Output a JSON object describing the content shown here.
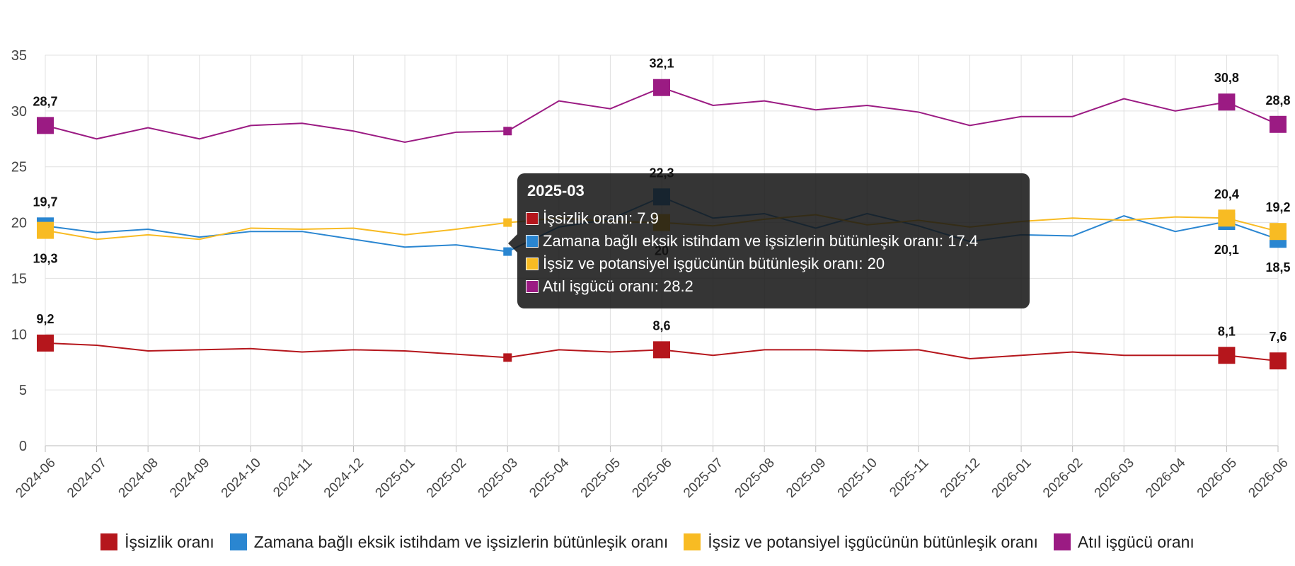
{
  "chart_data": {
    "type": "line",
    "x": [
      "2024-06",
      "2024-07",
      "2024-08",
      "2024-09",
      "2024-10",
      "2024-11",
      "2024-12",
      "2025-01",
      "2025-02",
      "2025-03",
      "2025-04",
      "2025-05",
      "2025-06",
      "2025-07",
      "2025-08",
      "2025-09",
      "2025-10",
      "2025-11",
      "2025-12",
      "2026-01",
      "2026-02",
      "2026-03",
      "2026-04",
      "2026-05",
      "2026-06"
    ],
    "ylim": [
      0,
      35
    ],
    "yticks": [
      0,
      5,
      10,
      15,
      20,
      25,
      30,
      35
    ],
    "grid": true,
    "legend_position": "bottom",
    "series": [
      {
        "name": "İşsizlik oranı",
        "color": "#b5161c",
        "values": [
          9.2,
          9.0,
          8.5,
          8.6,
          8.7,
          8.4,
          8.6,
          8.5,
          8.2,
          7.9,
          8.6,
          8.4,
          8.6,
          8.1,
          8.6,
          8.6,
          8.5,
          8.6,
          7.8,
          8.1,
          8.4,
          8.1,
          8.1,
          8.1,
          7.6
        ],
        "labels": [
          {
            "index": 0,
            "text": "9,2",
            "pos": "above"
          },
          {
            "index": 12,
            "text": "8,6",
            "pos": "above"
          },
          {
            "index": 23,
            "text": "8,1",
            "pos": "above"
          },
          {
            "index": 24,
            "text": "7,6",
            "pos": "above"
          }
        ]
      },
      {
        "name": "Zamana bağlı eksik istihdam ve işsizlerin bütünleşik oranı",
        "color": "#2a86d1",
        "values": [
          19.7,
          19.1,
          19.4,
          18.7,
          19.2,
          19.2,
          18.5,
          17.8,
          18.0,
          17.4,
          19.6,
          20.3,
          22.3,
          20.4,
          20.8,
          19.5,
          20.8,
          19.7,
          18.3,
          18.9,
          18.8,
          20.6,
          19.2,
          20.1,
          18.5
        ],
        "labels": [
          {
            "index": 0,
            "text": "19,7",
            "pos": "above"
          },
          {
            "index": 12,
            "text": "22,3",
            "pos": "above"
          },
          {
            "index": 23,
            "text": "20,1",
            "pos": "below"
          },
          {
            "index": 24,
            "text": "18,5",
            "pos": "below"
          }
        ]
      },
      {
        "name": "İşsiz ve potansiyel işgücünün bütünleşik oranı",
        "color": "#f8bb23",
        "values": [
          19.3,
          18.5,
          18.9,
          18.5,
          19.5,
          19.4,
          19.5,
          18.9,
          19.4,
          20.0,
          20.4,
          20.1,
          20.0,
          19.7,
          20.3,
          20.7,
          19.8,
          20.2,
          19.6,
          20.1,
          20.4,
          20.2,
          20.5,
          20.4,
          19.2
        ],
        "labels": [
          {
            "index": 0,
            "text": "19,3",
            "pos": "below"
          },
          {
            "index": 12,
            "text": "20",
            "pos": "below"
          },
          {
            "index": 23,
            "text": "20,4",
            "pos": "above"
          },
          {
            "index": 24,
            "text": "19,2",
            "pos": "above"
          }
        ]
      },
      {
        "name": "Atıl işgücü oranı",
        "color": "#9b1b83",
        "values": [
          28.7,
          27.5,
          28.5,
          27.5,
          28.7,
          28.9,
          28.2,
          27.2,
          28.1,
          28.2,
          30.9,
          30.2,
          32.1,
          30.5,
          30.9,
          30.1,
          30.5,
          29.9,
          28.7,
          29.5,
          29.5,
          31.1,
          30.0,
          30.8,
          28.8
        ],
        "labels": [
          {
            "index": 0,
            "text": "28,7",
            "pos": "above"
          },
          {
            "index": 12,
            "text": "32,1",
            "pos": "above"
          },
          {
            "index": 23,
            "text": "30,8",
            "pos": "above"
          },
          {
            "index": 24,
            "text": "28,8",
            "pos": "above"
          }
        ]
      }
    ],
    "highlight_indices": [
      0,
      12,
      23,
      24
    ],
    "hover_index": 9
  },
  "tooltip": {
    "title": "2025-03",
    "rows": [
      {
        "text": "İşsizlik oranı: 7.9",
        "color": "#b5161c"
      },
      {
        "text": "Zamana bağlı eksik istihdam ve işsizlerin bütünleşik oranı: 17.4",
        "color": "#2a86d1"
      },
      {
        "text": "İşsiz ve potansiyel işgücünün bütünleşik oranı: 20",
        "color": "#f8bb23"
      },
      {
        "text": "Atıl işgücü oranı: 28.2",
        "color": "#9b1b83"
      }
    ]
  }
}
